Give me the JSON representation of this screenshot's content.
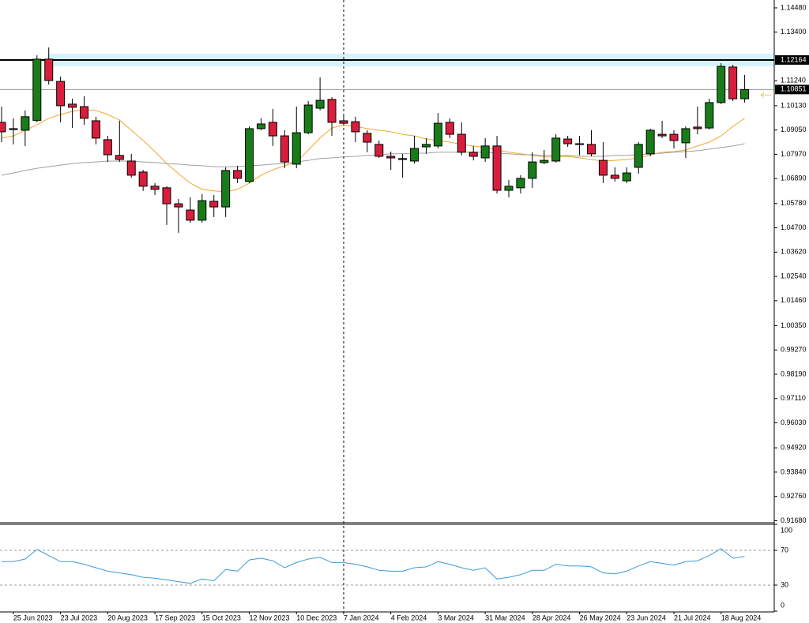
{
  "chart_data": [
    {
      "type": "candlestick",
      "categories": [
        null,
        "25 Jun 2023",
        null,
        null,
        null,
        "23 Jul 2023",
        null,
        null,
        null,
        "20 Aug 2023",
        null,
        null,
        null,
        "17 Sep 2023",
        null,
        null,
        null,
        "15 Oct 2023",
        null,
        null,
        null,
        "12 Nov 2023",
        null,
        null,
        null,
        "10 Dec 2023",
        null,
        null,
        null,
        "7 Jan 2024",
        null,
        null,
        null,
        "4 Feb 2024",
        null,
        null,
        null,
        "3 Mar 2024",
        null,
        null,
        null,
        "31 Mar 2024",
        null,
        null,
        null,
        "28 Apr 2024",
        null,
        null,
        null,
        "26 May 2024",
        null,
        null,
        null,
        "23 Jun 2024",
        null,
        null,
        null,
        "21 Jul 2024",
        null,
        null,
        null,
        "18 Aug 2024",
        null,
        null
      ],
      "open": [
        1.0939,
        1.0911,
        1.0904,
        1.0948,
        1.122,
        1.1121,
        1.102,
        1.1009,
        1.0946,
        1.0862,
        1.0792,
        1.0767,
        1.0718,
        1.0655,
        1.0648,
        1.0577,
        1.0549,
        1.0504,
        1.0588,
        1.0563,
        1.0725,
        1.0676,
        1.0911,
        1.0939,
        1.0879,
        1.0753,
        1.0893,
        1.1002,
        1.1041,
        1.0946,
        1.0942,
        1.089,
        1.0841,
        1.0788,
        1.0778,
        1.0767,
        1.083,
        1.0834,
        1.0939,
        1.0886,
        1.0806,
        1.0781,
        1.0834,
        1.0637,
        1.0648,
        1.069,
        1.076,
        1.0767,
        1.0865,
        1.0844,
        1.0841,
        1.077,
        1.0704,
        1.0679,
        1.0739,
        1.0799,
        1.0886,
        1.0886,
        1.0848,
        1.0918,
        1.0914,
        1.1027,
        1.1185,
        1.1044
      ],
      "high": [
        1.1009,
        1.0957,
        1.0992,
        1.1237,
        1.1272,
        1.1143,
        1.1044,
        1.1055,
        1.0964,
        1.0879,
        1.0946,
        1.0799,
        1.0728,
        1.0669,
        1.0655,
        1.0598,
        1.0606,
        1.062,
        1.0616,
        1.0739,
        1.0746,
        1.0921,
        1.0957,
        1.0999,
        1.0904,
        1.1009,
        1.1034,
        1.1139,
        1.1051,
        1.0974,
        1.0964,
        1.0904,
        1.0858,
        1.0809,
        1.0799,
        1.0879,
        1.0869,
        1.0981,
        1.0957,
        1.0939,
        1.0834,
        1.0869,
        1.0879,
        1.0683,
        1.0704,
        1.0806,
        1.0816,
        1.0886,
        1.0879,
        1.0879,
        1.0904,
        1.0851,
        1.0739,
        1.0739,
        1.0851,
        1.0911,
        1.0946,
        1.0904,
        1.0921,
        1.1009,
        1.1044,
        1.1202,
        1.1195,
        1.115
      ],
      "low": [
        1.0851,
        1.0841,
        1.0834,
        1.0939,
        1.1107,
        1.0939,
        1.0914,
        1.0928,
        1.0841,
        1.0763,
        1.0763,
        1.0693,
        1.0634,
        1.0616,
        1.0483,
        1.0448,
        1.0493,
        1.0493,
        1.0518,
        1.0518,
        1.0669,
        1.0669,
        1.0904,
        1.0834,
        1.0735,
        1.0735,
        1.0886,
        1.0992,
        1.0879,
        1.0928,
        1.0851,
        1.0806,
        1.0781,
        1.0728,
        1.0693,
        1.0756,
        1.0799,
        1.0823,
        1.0869,
        1.0792,
        1.077,
        1.0763,
        1.0623,
        1.0606,
        1.0623,
        1.0648,
        1.0753,
        1.076,
        1.083,
        1.0792,
        1.0788,
        1.0669,
        1.0676,
        1.0669,
        1.0711,
        1.0788,
        1.0869,
        1.0823,
        1.0781,
        1.0886,
        1.0907,
        1.102,
        1.1034,
        1.1027
      ],
      "close": [
        1.0897,
        1.0907,
        1.0964,
        1.122,
        1.1125,
        1.1013,
        1.1006,
        1.0957,
        1.0869,
        1.0795,
        1.0774,
        1.0704,
        1.0655,
        1.0641,
        1.0577,
        1.0563,
        1.0504,
        1.0591,
        1.0563,
        1.0725,
        1.069,
        1.0911,
        1.0932,
        1.0879,
        1.0763,
        1.0893,
        1.1016,
        1.1037,
        1.0939,
        1.0935,
        1.0897,
        1.0851,
        1.0788,
        1.0781,
        1.0774,
        1.0823,
        1.0841,
        1.0935,
        1.0886,
        1.0806,
        1.0788,
        1.0834,
        1.0637,
        1.0655,
        1.069,
        1.0763,
        1.077,
        1.0869,
        1.0844,
        1.0841,
        1.0799,
        1.0704,
        1.069,
        1.0714,
        1.0841,
        1.0904,
        1.0879,
        1.0858,
        1.0911,
        1.0911,
        1.1027,
        1.1188,
        1.1044,
        1.1085
      ],
      "up_color": "#187d18",
      "down_color": "#d81e3c",
      "series": [
        {
          "color": "#f0a830",
          "values": [
            1.0869,
            1.0879,
            1.0904,
            1.0928,
            1.0957,
            1.0974,
            1.0988,
            1.0995,
            1.0992,
            1.0974,
            1.0949,
            1.0904,
            1.0858,
            1.0809,
            1.0756,
            1.0711,
            1.0669,
            1.0641,
            1.0634,
            1.063,
            1.0641,
            1.0669,
            1.0704,
            1.0728,
            1.0746,
            1.0763,
            1.0816,
            1.0869,
            1.0914,
            1.0928,
            1.0921,
            1.0911,
            1.0904,
            1.0897,
            1.0886,
            1.0879,
            1.0865,
            1.0858,
            1.0851,
            1.0841,
            1.0834,
            1.0827,
            1.0816,
            1.0806,
            1.0799,
            1.0792,
            1.0785,
            1.0785,
            1.0788,
            1.0781,
            1.0774,
            1.0767,
            1.077,
            1.0774,
            1.0781,
            1.0795,
            1.0806,
            1.0809,
            1.0816,
            1.0834,
            1.0851,
            1.0879,
            1.0921,
            1.0957
          ]
        },
        {
          "color": "#a0a0a0",
          "values": [
            1.0704,
            1.0714,
            1.0725,
            1.0735,
            1.0742,
            1.0749,
            1.0756,
            1.076,
            1.0763,
            1.0767,
            1.0767,
            1.0767,
            1.0763,
            1.076,
            1.0756,
            1.0753,
            1.0749,
            1.0746,
            1.0742,
            1.0742,
            1.0742,
            1.0746,
            1.0749,
            1.0753,
            1.0756,
            1.0763,
            1.077,
            1.0778,
            1.0781,
            1.0785,
            1.0788,
            1.0792,
            1.0795,
            1.0799,
            1.0799,
            1.0802,
            1.0802,
            1.0806,
            1.0806,
            1.0806,
            1.0806,
            1.0806,
            1.0802,
            1.0799,
            1.0795,
            1.0795,
            1.0792,
            1.0792,
            1.0792,
            1.0788,
            1.0788,
            1.0788,
            1.0792,
            1.0792,
            1.0795,
            1.0799,
            1.0802,
            1.0806,
            1.0809,
            1.0813,
            1.082,
            1.0827,
            1.0834,
            1.0844
          ]
        }
      ],
      "level": 1.12164,
      "bid": 1.10851,
      "ylim": [
        0.9159,
        1.1483
      ],
      "yticks": [
        {
          "value": 1.1448,
          "label": "1.14480"
        },
        {
          "value": 1.134,
          "label": "1.13400"
        },
        {
          "value": 1.1124,
          "label": "1.11240"
        },
        {
          "value": 1.1013,
          "label": "1.10130"
        },
        {
          "value": 1.0905,
          "label": "1.09050"
        },
        {
          "value": 1.0797,
          "label": "1.07970"
        },
        {
          "value": 1.0689,
          "label": "1.06890"
        },
        {
          "value": 1.0578,
          "label": "1.05780"
        },
        {
          "value": 1.047,
          "label": "1.04700"
        },
        {
          "value": 1.0362,
          "label": "1.03620"
        },
        {
          "value": 1.0254,
          "label": "1.02540"
        },
        {
          "value": 1.0146,
          "label": "1.01460"
        },
        {
          "value": 1.0035,
          "label": "1.00350"
        },
        {
          "value": 0.9927,
          "label": "0.99270"
        },
        {
          "value": 0.9819,
          "label": "0.98190"
        },
        {
          "value": 0.9711,
          "label": "0.97110"
        },
        {
          "value": 0.9603,
          "label": "0.96030"
        },
        {
          "value": 0.9492,
          "label": "0.94920"
        },
        {
          "value": 0.9384,
          "label": "0.93840"
        },
        {
          "value": 0.9276,
          "label": "0.92760"
        },
        {
          "value": 0.9168,
          "label": "0.91680"
        }
      ]
    },
    {
      "type": "line",
      "series": [
        {
          "color": "#3a9ad9",
          "values": [
            57,
            57,
            60,
            71,
            64,
            57,
            57,
            54,
            50,
            46,
            44,
            42,
            39,
            38,
            36,
            34,
            32,
            37,
            35,
            48,
            46,
            59,
            61,
            58,
            50,
            56,
            60,
            62,
            56,
            56,
            54,
            51,
            47,
            46,
            46,
            50,
            51,
            57,
            54,
            50,
            47,
            50,
            37,
            39,
            42,
            47,
            47,
            54,
            52,
            52,
            51,
            44,
            43,
            46,
            52,
            57,
            55,
            53,
            57,
            58,
            64,
            72,
            61,
            63
          ]
        }
      ],
      "ylim": [
        0,
        100
      ],
      "yticks": [
        0,
        30,
        70,
        100
      ]
    }
  ]
}
